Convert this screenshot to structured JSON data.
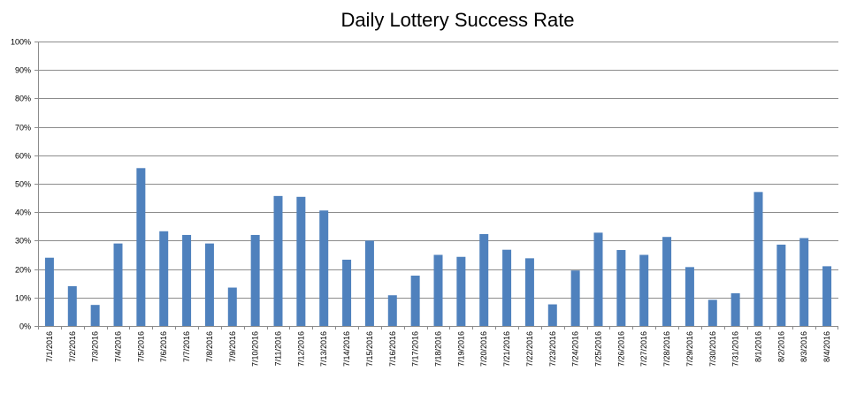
{
  "chart_data": {
    "type": "bar",
    "title": "Daily Lottery Success Rate",
    "xlabel": "",
    "ylabel": "",
    "ylim": [
      0,
      100
    ],
    "yticks": [
      0,
      10,
      20,
      30,
      40,
      50,
      60,
      70,
      80,
      90,
      100
    ],
    "ytick_labels": [
      "0%",
      "10%",
      "20%",
      "30%",
      "40%",
      "50%",
      "60%",
      "70%",
      "80%",
      "90%",
      "100%"
    ],
    "grid": true,
    "legend": "none",
    "bar_color": "#4F81BD",
    "categories": [
      "7/1/2016",
      "7/2/2016",
      "7/3/2016",
      "7/4/2016",
      "7/5/2016",
      "7/6/2016",
      "7/7/2016",
      "7/8/2016",
      "7/9/2016",
      "7/10/2016",
      "7/11/2016",
      "7/12/2016",
      "7/13/2016",
      "7/14/2016",
      "7/15/2016",
      "7/16/2016",
      "7/17/2016",
      "7/18/2016",
      "7/19/2016",
      "7/20/2016",
      "7/21/2016",
      "7/22/2016",
      "7/23/2016",
      "7/24/2016",
      "7/25/2016",
      "7/26/2016",
      "7/27/2016",
      "7/28/2016",
      "7/29/2016",
      "7/30/2016",
      "7/31/2016",
      "8/1/2016",
      "8/2/2016",
      "8/3/2016",
      "8/4/2016"
    ],
    "values": [
      24,
      14,
      7.4,
      29,
      55.5,
      33.3,
      32,
      29,
      13.5,
      32,
      45.7,
      45.4,
      40.6,
      23.3,
      30,
      10.8,
      17.7,
      25,
      24.3,
      32.3,
      26.8,
      23.8,
      7.6,
      19.5,
      32.8,
      26.7,
      25,
      31.3,
      20.7,
      9.2,
      11.5,
      47.1,
      28.6,
      30.9,
      21
    ]
  }
}
